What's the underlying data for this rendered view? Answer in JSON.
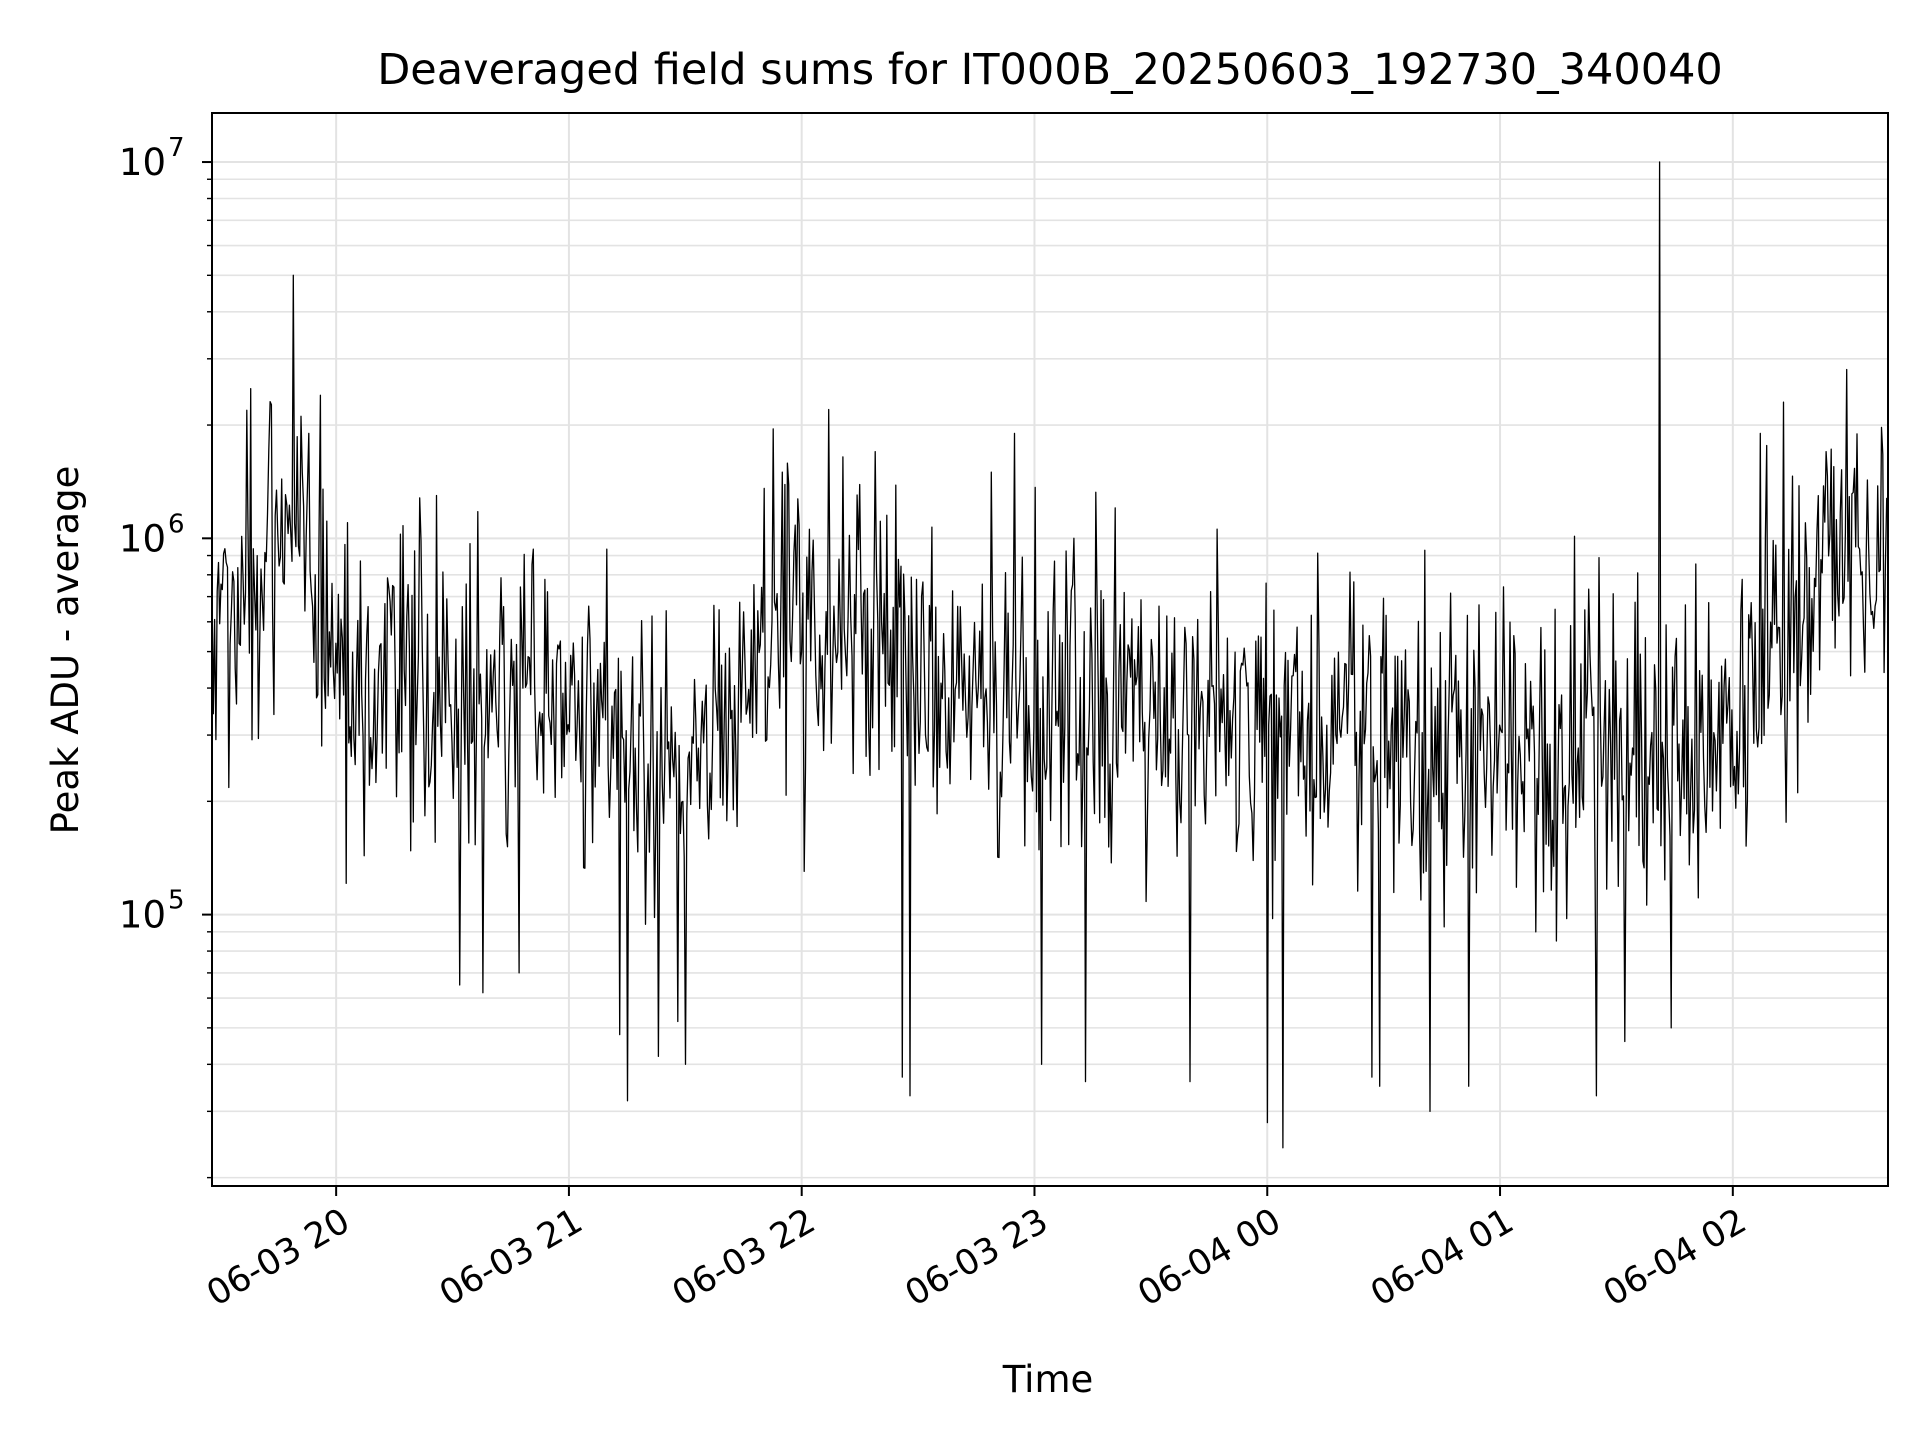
{
  "chart_data": {
    "type": "line",
    "title": "Deaveraged field sums for IT000B_20250603_192730_340040",
    "xlabel": "Time",
    "ylabel": "Peak ADU - average",
    "yscale": "log",
    "ylim": [
      19000,
      13500000
    ],
    "xlim": [
      "2025-06-03 19:28",
      "2025-06-04 02:40"
    ],
    "grid": true,
    "x_ticks": [
      {
        "t": "2025-06-03 20:00",
        "label": "06-03 20"
      },
      {
        "t": "2025-06-03 21:00",
        "label": "06-03 21"
      },
      {
        "t": "2025-06-03 22:00",
        "label": "06-03 22"
      },
      {
        "t": "2025-06-03 23:00",
        "label": "06-03 23"
      },
      {
        "t": "2025-06-04 00:00",
        "label": "06-04 00"
      },
      {
        "t": "2025-06-04 01:00",
        "label": "06-04 01"
      },
      {
        "t": "2025-06-04 02:00",
        "label": "06-04 02"
      }
    ],
    "y_ticks": [
      {
        "v": 100000,
        "label": "10",
        "exp": "5"
      },
      {
        "v": 1000000,
        "label": "10",
        "exp": "6"
      },
      {
        "v": 10000000,
        "label": "10",
        "exp": "7"
      }
    ],
    "series": [
      {
        "color": "#000000",
        "baseline": [
          [
            "2025-06-03 19:28",
            650000
          ],
          [
            "2025-06-03 19:40",
            850000
          ],
          [
            "2025-06-03 19:50",
            1000000
          ],
          [
            "2025-06-03 19:55",
            600000
          ],
          [
            "2025-06-03 20:00",
            380000
          ],
          [
            "2025-06-03 20:30",
            380000
          ],
          [
            "2025-06-03 21:00",
            400000
          ],
          [
            "2025-06-03 21:20",
            300000
          ],
          [
            "2025-06-03 21:30",
            250000
          ],
          [
            "2025-06-03 21:45",
            450000
          ],
          [
            "2025-06-03 22:00",
            550000
          ],
          [
            "2025-06-03 22:20",
            500000
          ],
          [
            "2025-06-03 22:35",
            400000
          ],
          [
            "2025-06-03 23:00",
            380000
          ],
          [
            "2025-06-03 23:30",
            330000
          ],
          [
            "2025-06-04 00:00",
            320000
          ],
          [
            "2025-06-04 00:30",
            300000
          ],
          [
            "2025-06-04 01:00",
            280000
          ],
          [
            "2025-06-04 01:30",
            270000
          ],
          [
            "2025-06-04 02:00",
            300000
          ],
          [
            "2025-06-04 02:15",
            600000
          ],
          [
            "2025-06-04 02:25",
            1000000
          ],
          [
            "2025-06-04 02:40",
            950000
          ]
        ],
        "peaks": [
          [
            "2025-06-03 19:49",
            5000000
          ],
          [
            "2025-06-03 19:38",
            2500000
          ],
          [
            "2025-06-03 19:56",
            2400000
          ],
          [
            "2025-06-03 19:53",
            1900000
          ],
          [
            "2025-06-03 20:26",
            1300000
          ],
          [
            "2025-06-03 20:03",
            1100000
          ],
          [
            "2025-06-03 21:55",
            1500000
          ],
          [
            "2025-06-03 22:07",
            2200000
          ],
          [
            "2025-06-03 22:19",
            1700000
          ],
          [
            "2025-06-03 22:49",
            1500000
          ],
          [
            "2025-06-03 22:55",
            1900000
          ],
          [
            "2025-06-03 23:10",
            1000000
          ],
          [
            "2025-06-04 01:41",
            10000000
          ],
          [
            "2025-06-04 02:07",
            1900000
          ],
          [
            "2025-06-04 02:13",
            2300000
          ],
          [
            "2025-06-04 02:24",
            1700000
          ]
        ],
        "dips": [
          [
            "2025-06-03 20:32",
            65000
          ],
          [
            "2025-06-03 20:38",
            62000
          ],
          [
            "2025-06-03 20:47",
            70000
          ],
          [
            "2025-06-03 21:13",
            48000
          ],
          [
            "2025-06-03 21:15",
            32000
          ],
          [
            "2025-06-03 21:23",
            42000
          ],
          [
            "2025-06-03 21:28",
            52000
          ],
          [
            "2025-06-03 21:30",
            40000
          ],
          [
            "2025-06-03 22:26",
            37000
          ],
          [
            "2025-06-03 22:28",
            33000
          ],
          [
            "2025-06-03 23:02",
            40000
          ],
          [
            "2025-06-03 23:13",
            36000
          ],
          [
            "2025-06-03 23:40",
            36000
          ],
          [
            "2025-06-04 00:00",
            28000
          ],
          [
            "2025-06-04 00:04",
            24000
          ],
          [
            "2025-06-04 00:27",
            37000
          ],
          [
            "2025-06-04 00:29",
            35000
          ],
          [
            "2025-06-04 00:42",
            30000
          ],
          [
            "2025-06-04 00:52",
            35000
          ],
          [
            "2025-06-04 01:25",
            33000
          ],
          [
            "2025-06-04 01:44",
            50000
          ],
          [
            "2025-06-04 01:32",
            46000
          ]
        ]
      }
    ]
  }
}
